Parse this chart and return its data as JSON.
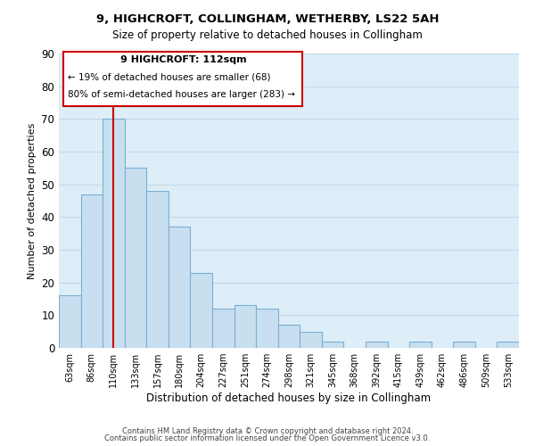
{
  "title": "9, HIGHCROFT, COLLINGHAM, WETHERBY, LS22 5AH",
  "subtitle": "Size of property relative to detached houses in Collingham",
  "xlabel": "Distribution of detached houses by size in Collingham",
  "ylabel": "Number of detached properties",
  "bar_labels": [
    "63sqm",
    "86sqm",
    "110sqm",
    "133sqm",
    "157sqm",
    "180sqm",
    "204sqm",
    "227sqm",
    "251sqm",
    "274sqm",
    "298sqm",
    "321sqm",
    "345sqm",
    "368sqm",
    "392sqm",
    "415sqm",
    "439sqm",
    "462sqm",
    "486sqm",
    "509sqm",
    "533sqm"
  ],
  "bar_heights": [
    16,
    47,
    70,
    55,
    48,
    37,
    23,
    12,
    13,
    12,
    7,
    5,
    2,
    0,
    2,
    0,
    2,
    0,
    2,
    0,
    2
  ],
  "bar_color": "#c8dff0",
  "bar_edge_color": "#7aafd4",
  "highlight_index": 2,
  "highlight_line_color": "#cc0000",
  "ylim": [
    0,
    90
  ],
  "yticks": [
    0,
    10,
    20,
    30,
    40,
    50,
    60,
    70,
    80,
    90
  ],
  "annotation_title": "9 HIGHCROFT: 112sqm",
  "annotation_line1": "← 19% of detached houses are smaller (68)",
  "annotation_line2": "80% of semi-detached houses are larger (283) →",
  "annotation_box_color": "#ffffff",
  "annotation_box_edge": "#cc0000",
  "footer1": "Contains HM Land Registry data © Crown copyright and database right 2024.",
  "footer2": "Contains public sector information licensed under the Open Government Licence v3.0."
}
